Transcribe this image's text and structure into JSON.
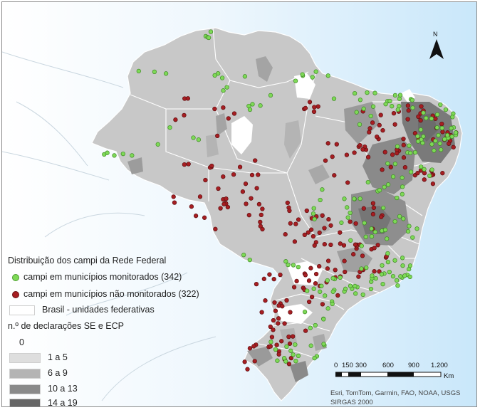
{
  "legend": {
    "title": "Distribuição dos campi da Rede Federal",
    "monitored_label": "campi em municípios monitorados (342)",
    "unmonitored_label": "campi em municípios não monitorados (322)",
    "states_label": "Brasil - unidades federativas",
    "declarations_title": "n.º de declarações SE e ECP",
    "classes": [
      {
        "label": "0",
        "color": "#ffffff"
      },
      {
        "label": "1 a 5",
        "color": "#dedede"
      },
      {
        "label": "6 a 9",
        "color": "#b4b4b4"
      },
      {
        "label": "10 a 13",
        "color": "#8a8a8a"
      },
      {
        "label": "14 a 19",
        "color": "#666666"
      }
    ]
  },
  "colors": {
    "monitored": "#7ed957",
    "unmonitored": "#a61e22",
    "land": "#c8c8c8",
    "water": "#d3ecfb"
  },
  "north_arrow": {
    "label": "N"
  },
  "scale_bar": {
    "ticks": [
      "0",
      "150",
      "300",
      "600",
      "900",
      "1.200"
    ],
    "unit": "Km"
  },
  "credits": {
    "line1": "Esri, TomTom, Garmin, FAO, NOAA, USGS",
    "line2": "SIRGAS 2000"
  }
}
